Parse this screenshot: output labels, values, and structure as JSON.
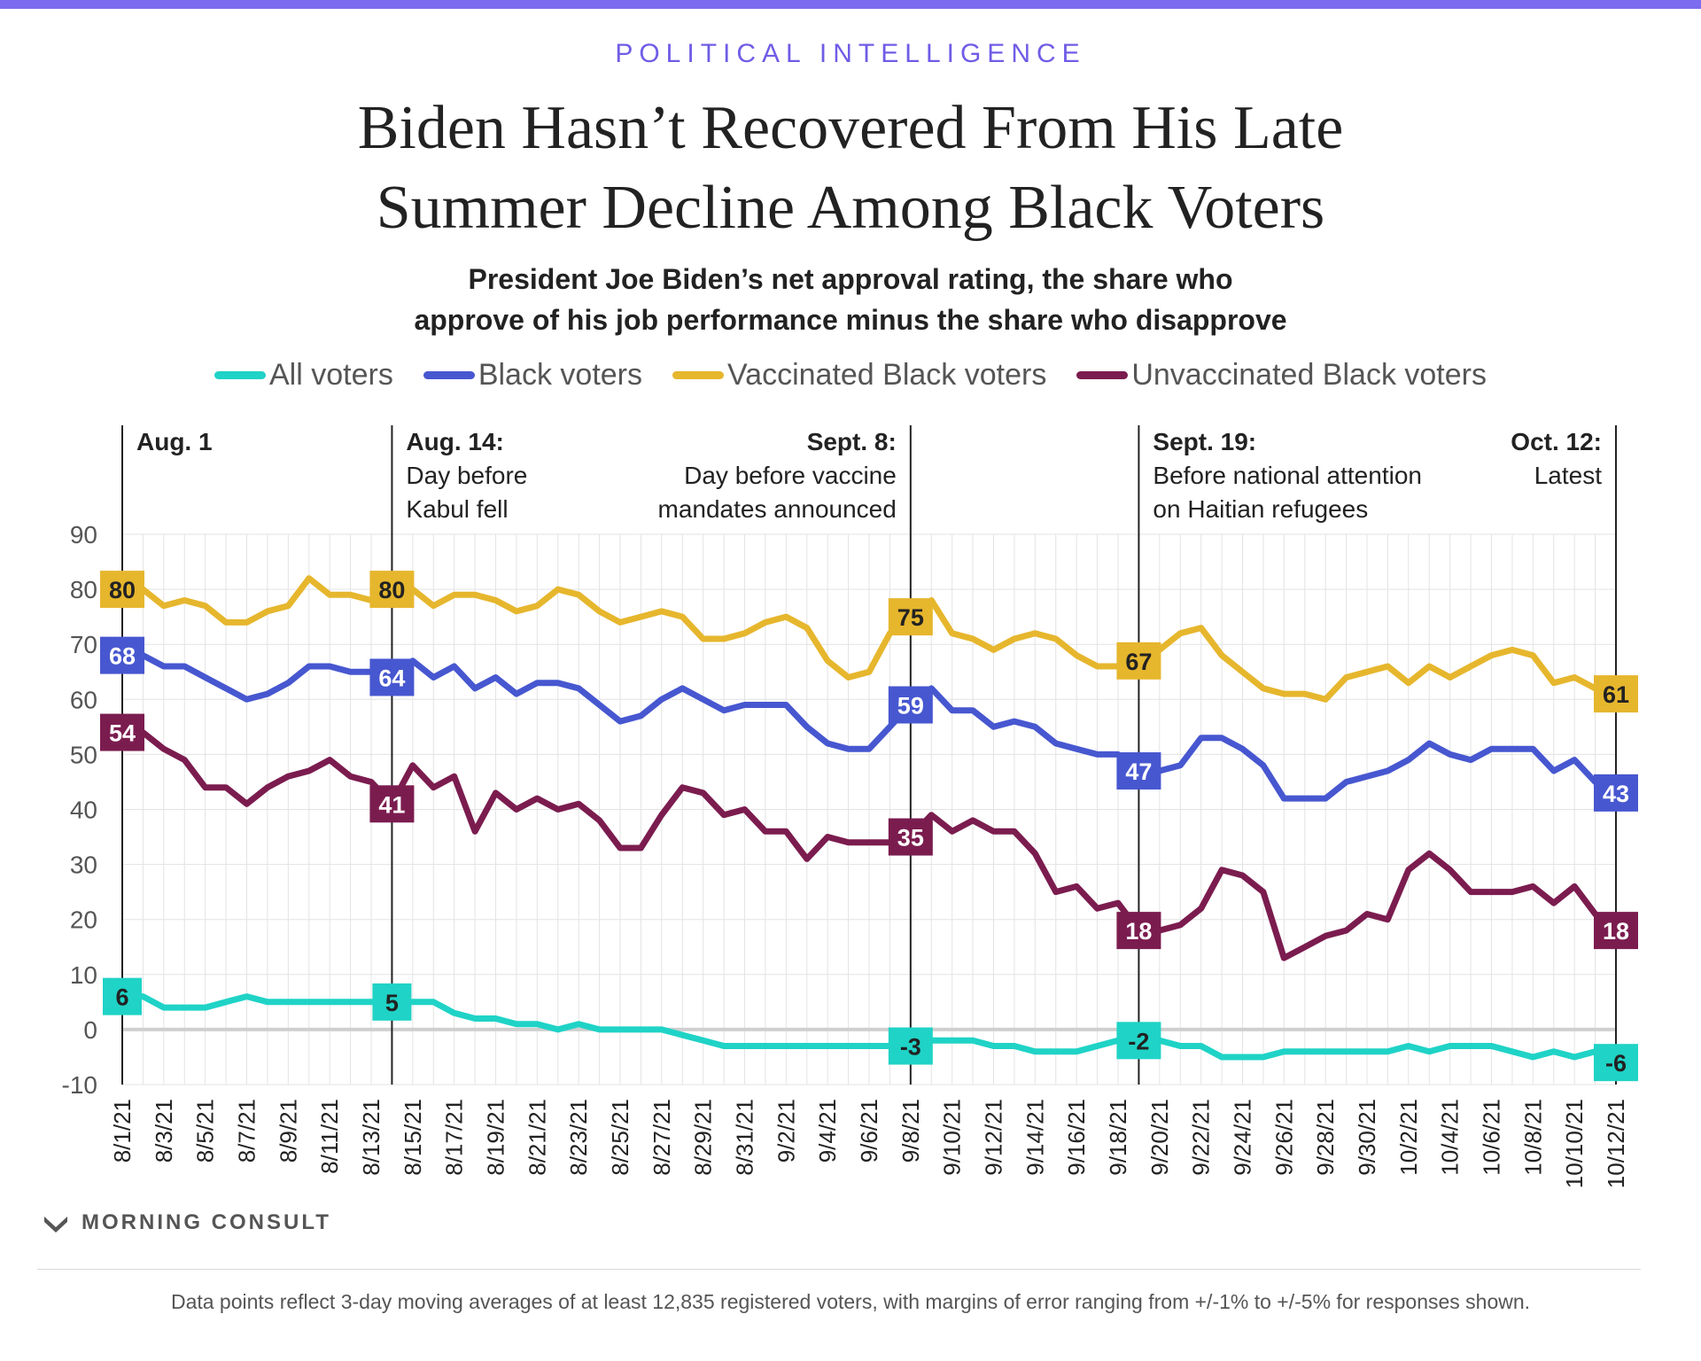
{
  "kicker": "POLITICAL INTELLIGENCE",
  "title_line1": "Biden Hasn’t Recovered From His Late",
  "title_line2": "Summer Decline Among Black Voters",
  "subtitle_line1": "President Joe Biden’s net approval rating, the share who",
  "subtitle_line2": "approve of his job performance minus the share who disapprove",
  "brand": "MORNING CONSULT",
  "footnote": "Data points reflect 3-day moving averages of at least 12,835 registered voters, with margins of error ranging from +/-1% to +/-5% for responses shown.",
  "chart_data": {
    "type": "line",
    "x": [
      "8/1/21",
      "8/2/21",
      "8/3/21",
      "8/4/21",
      "8/5/21",
      "8/6/21",
      "8/7/21",
      "8/8/21",
      "8/9/21",
      "8/10/21",
      "8/11/21",
      "8/12/21",
      "8/13/21",
      "8/14/21",
      "8/15/21",
      "8/16/21",
      "8/17/21",
      "8/18/21",
      "8/19/21",
      "8/20/21",
      "8/21/21",
      "8/22/21",
      "8/23/21",
      "8/24/21",
      "8/25/21",
      "8/26/21",
      "8/27/21",
      "8/28/21",
      "8/29/21",
      "8/30/21",
      "8/31/21",
      "9/1/21",
      "9/2/21",
      "9/3/21",
      "9/4/21",
      "9/5/21",
      "9/6/21",
      "9/7/21",
      "9/8/21",
      "9/9/21",
      "9/10/21",
      "9/11/21",
      "9/12/21",
      "9/13/21",
      "9/14/21",
      "9/15/21",
      "9/16/21",
      "9/17/21",
      "9/18/21",
      "9/19/21",
      "9/20/21",
      "9/21/21",
      "9/22/21",
      "9/23/21",
      "9/24/21",
      "9/25/21",
      "9/26/21",
      "9/27/21",
      "9/28/21",
      "9/29/21",
      "9/30/21",
      "10/1/21",
      "10/2/21",
      "10/3/21",
      "10/4/21",
      "10/5/21",
      "10/6/21",
      "10/7/21",
      "10/8/21",
      "10/9/21",
      "10/10/21",
      "10/11/21",
      "10/12/21"
    ],
    "x_tick_labels": [
      "8/1/21",
      "8/3/21",
      "8/5/21",
      "8/7/21",
      "8/9/21",
      "8/11/21",
      "8/13/21",
      "8/15/21",
      "8/17/21",
      "8/19/21",
      "8/21/21",
      "8/23/21",
      "8/25/21",
      "8/27/21",
      "8/29/21",
      "8/31/21",
      "9/2/21",
      "9/4/21",
      "9/6/21",
      "9/8/21",
      "9/10/21",
      "9/12/21",
      "9/14/21",
      "9/16/21",
      "9/18/21",
      "9/20/21",
      "9/22/21",
      "9/24/21",
      "9/26/21",
      "9/28/21",
      "9/30/21",
      "10/2/21",
      "10/4/21",
      "10/6/21",
      "10/8/21",
      "10/10/21",
      "10/12/21"
    ],
    "ylim": [
      -10,
      90
    ],
    "y_ticks": [
      90,
      80,
      70,
      60,
      50,
      40,
      30,
      20,
      10,
      0,
      -10
    ],
    "grid": true,
    "legend_position": "top",
    "series": [
      {
        "name": "All voters",
        "color": "#1fd3c6",
        "label_text_color": "#222222",
        "values": [
          6,
          6,
          4,
          4,
          4,
          5,
          6,
          5,
          5,
          5,
          5,
          5,
          5,
          5,
          5,
          5,
          3,
          2,
          2,
          1,
          1,
          0,
          1,
          0,
          0,
          0,
          0,
          -1,
          -2,
          -3,
          -3,
          -3,
          -3,
          -3,
          -3,
          -3,
          -3,
          -3,
          -3,
          -2,
          -2,
          -2,
          -3,
          -3,
          -4,
          -4,
          -4,
          -3,
          -2,
          -2,
          -2,
          -3,
          -3,
          -5,
          -5,
          -5,
          -4,
          -4,
          -4,
          -4,
          -4,
          -4,
          -3,
          -4,
          -3,
          -3,
          -3,
          -4,
          -5,
          -4,
          -5,
          -4,
          -6
        ]
      },
      {
        "name": "Black voters",
        "color": "#4757d0",
        "label_text_color": "#ffffff",
        "values": [
          68,
          68,
          66,
          66,
          64,
          62,
          60,
          61,
          63,
          66,
          66,
          65,
          65,
          64,
          67,
          64,
          66,
          62,
          64,
          61,
          63,
          63,
          62,
          59,
          56,
          57,
          60,
          62,
          60,
          58,
          59,
          59,
          59,
          55,
          52,
          51,
          51,
          55,
          59,
          62,
          58,
          58,
          55,
          56,
          55,
          52,
          51,
          50,
          50,
          47,
          47,
          48,
          53,
          53,
          51,
          48,
          42,
          42,
          42,
          45,
          46,
          47,
          49,
          52,
          50,
          49,
          51,
          51,
          51,
          47,
          49,
          45,
          43
        ]
      },
      {
        "name": "Vaccinated Black voters",
        "color": "#e6b62d",
        "label_text_color": "#222222",
        "values": [
          80,
          80,
          77,
          78,
          77,
          74,
          74,
          76,
          77,
          82,
          79,
          79,
          78,
          80,
          80,
          77,
          79,
          79,
          78,
          76,
          77,
          80,
          79,
          76,
          74,
          75,
          76,
          75,
          71,
          71,
          72,
          74,
          75,
          73,
          67,
          64,
          65,
          72,
          75,
          78,
          72,
          71,
          69,
          71,
          72,
          71,
          68,
          66,
          66,
          67,
          69,
          72,
          73,
          68,
          65,
          62,
          61,
          61,
          60,
          64,
          65,
          66,
          63,
          66,
          64,
          66,
          68,
          69,
          68,
          63,
          64,
          62,
          61
        ]
      },
      {
        "name": "Unvaccinated Black voters",
        "color": "#7b1c4f",
        "label_text_color": "#ffffff",
        "values": [
          54,
          54,
          51,
          49,
          44,
          44,
          41,
          44,
          46,
          47,
          49,
          46,
          45,
          41,
          48,
          44,
          46,
          36,
          43,
          40,
          42,
          40,
          41,
          38,
          33,
          33,
          39,
          44,
          43,
          39,
          40,
          36,
          36,
          31,
          35,
          34,
          34,
          34,
          35,
          39,
          36,
          38,
          36,
          36,
          32,
          25,
          26,
          22,
          23,
          18,
          18,
          19,
          22,
          29,
          28,
          25,
          13,
          15,
          17,
          18,
          21,
          20,
          29,
          32,
          29,
          25,
          25,
          25,
          26,
          23,
          26,
          21,
          18
        ]
      }
    ],
    "annotations": [
      {
        "index": 0,
        "lines": [
          "Aug. 1"
        ],
        "align": "left"
      },
      {
        "index": 13,
        "lines": [
          "Aug. 14:",
          "Day before",
          "Kabul fell"
        ],
        "align": "left"
      },
      {
        "index": 38,
        "lines": [
          "Sept. 8:",
          "Day before vaccine",
          "mandates announced"
        ],
        "align": "right"
      },
      {
        "index": 49,
        "lines": [
          "Sept. 19:",
          "Before national attention",
          "on Haitian refugees"
        ],
        "align": "left"
      },
      {
        "index": 72,
        "lines": [
          "Oct. 12:",
          "Latest"
        ],
        "align": "right"
      }
    ],
    "labeled_points": [
      0,
      13,
      38,
      49,
      72
    ]
  }
}
